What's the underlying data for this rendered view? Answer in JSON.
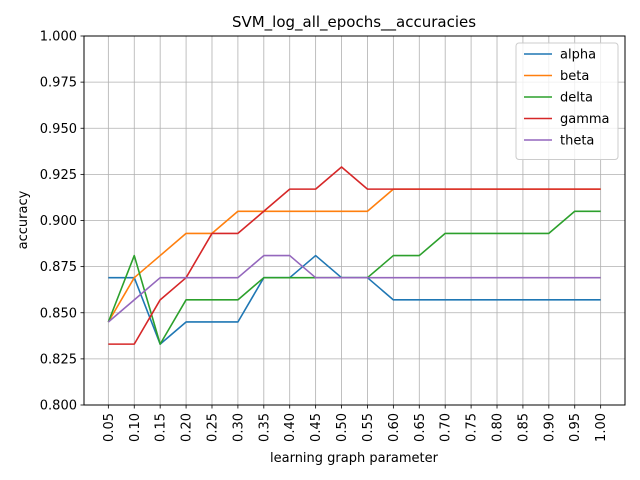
{
  "chart_data": {
    "type": "line",
    "title": "SVM_log_all_epochs__accuracies",
    "xlabel": "learning graph parameter",
    "ylabel": "accuracy",
    "x": [
      "0.05",
      "0.10",
      "0.15",
      "0.20",
      "0.25",
      "0.30",
      "0.35",
      "0.40",
      "0.45",
      "0.50",
      "0.55",
      "0.60",
      "0.65",
      "0.70",
      "0.75",
      "0.80",
      "0.85",
      "0.90",
      "0.95",
      "1.00"
    ],
    "ylim": [
      0.8,
      1.0
    ],
    "yticks": [
      "0.800",
      "0.825",
      "0.850",
      "0.875",
      "0.900",
      "0.925",
      "0.950",
      "0.975",
      "1.000"
    ],
    "grid": true,
    "legend_position": "top-right",
    "series": [
      {
        "name": "alpha",
        "color": "#1f77b4",
        "values": [
          0.869,
          0.869,
          0.833,
          0.845,
          0.845,
          0.845,
          0.869,
          0.869,
          0.881,
          0.869,
          0.869,
          0.857,
          0.857,
          0.857,
          0.857,
          0.857,
          0.857,
          0.857,
          0.857,
          0.857
        ]
      },
      {
        "name": "beta",
        "color": "#ff7f0e",
        "values": [
          0.845,
          0.869,
          0.881,
          0.893,
          0.893,
          0.905,
          0.905,
          0.905,
          0.905,
          0.905,
          0.905,
          0.917,
          0.917,
          0.917,
          0.917,
          0.917,
          0.917,
          0.917,
          0.917,
          0.917
        ]
      },
      {
        "name": "delta",
        "color": "#2ca02c",
        "values": [
          0.845,
          0.881,
          0.833,
          0.857,
          0.857,
          0.857,
          0.869,
          0.869,
          0.869,
          0.869,
          0.869,
          0.881,
          0.881,
          0.893,
          0.893,
          0.893,
          0.893,
          0.893,
          0.905,
          0.905
        ]
      },
      {
        "name": "gamma",
        "color": "#d62728",
        "values": [
          0.833,
          0.833,
          0.857,
          0.869,
          0.893,
          0.893,
          0.905,
          0.917,
          0.917,
          0.929,
          0.917,
          0.917,
          0.917,
          0.917,
          0.917,
          0.917,
          0.917,
          0.917,
          0.917,
          0.917
        ]
      },
      {
        "name": "theta",
        "color": "#9467bd",
        "values": [
          0.845,
          0.857,
          0.869,
          0.869,
          0.869,
          0.869,
          0.881,
          0.881,
          0.869,
          0.869,
          0.869,
          0.869,
          0.869,
          0.869,
          0.869,
          0.869,
          0.869,
          0.869,
          0.869,
          0.869
        ]
      }
    ]
  }
}
